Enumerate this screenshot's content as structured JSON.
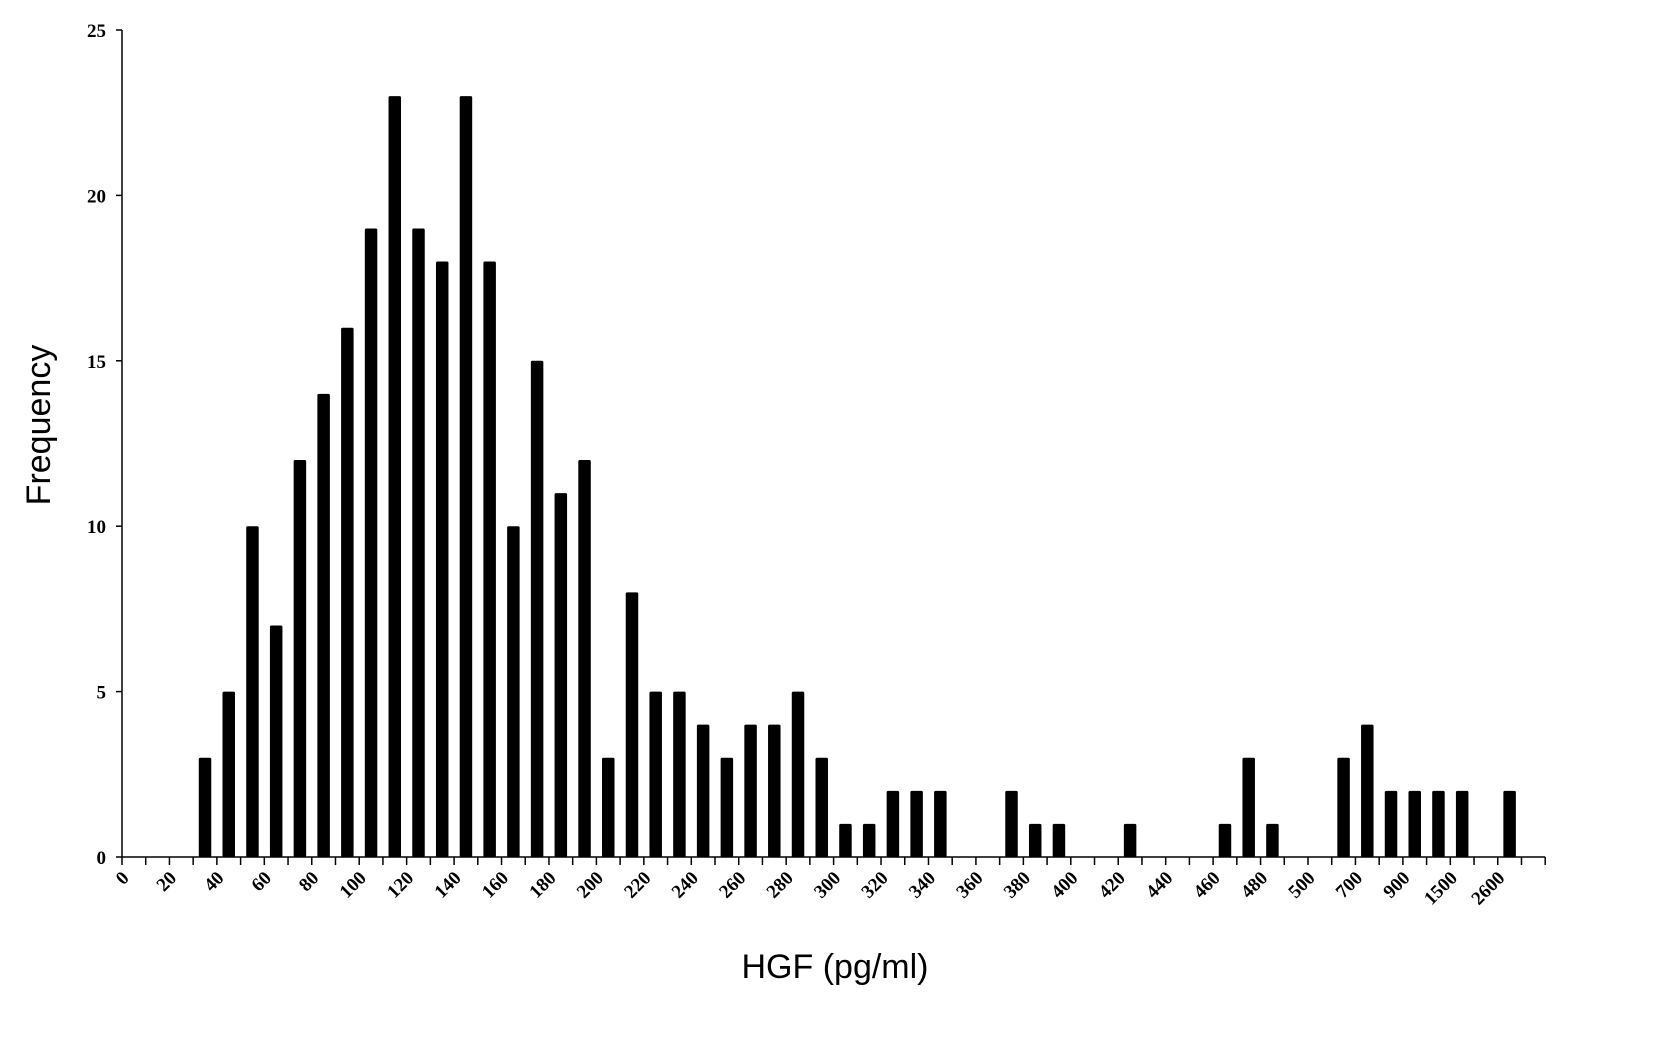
{
  "chart_data": {
    "type": "bar",
    "xlabel": "HGF (pg/ml)",
    "ylabel": "Frequency",
    "ylim": [
      0,
      25
    ],
    "y_ticks": [
      0,
      5,
      10,
      15,
      20,
      25
    ],
    "x_tick_labels": [
      "0",
      "20",
      "40",
      "60",
      "80",
      "100",
      "120",
      "140",
      "160",
      "180",
      "200",
      "220",
      "240",
      "260",
      "280",
      "300",
      "320",
      "340",
      "360",
      "380",
      "400",
      "420",
      "440",
      "460",
      "480",
      "500",
      "700",
      "900",
      "1500",
      "2600"
    ],
    "values": [
      0,
      0,
      0,
      3,
      5,
      10,
      7,
      12,
      14,
      16,
      19,
      23,
      19,
      18,
      23,
      18,
      10,
      15,
      11,
      12,
      3,
      8,
      5,
      5,
      4,
      3,
      4,
      4,
      5,
      3,
      1,
      1,
      2,
      2,
      2,
      0,
      0,
      2,
      1,
      1,
      0,
      0,
      1,
      0,
      0,
      0,
      1,
      3,
      1,
      0,
      0,
      3,
      4,
      2,
      2,
      2,
      2,
      0,
      2,
      0
    ],
    "bar_color": "#000000",
    "grid": false,
    "legend": "none"
  }
}
